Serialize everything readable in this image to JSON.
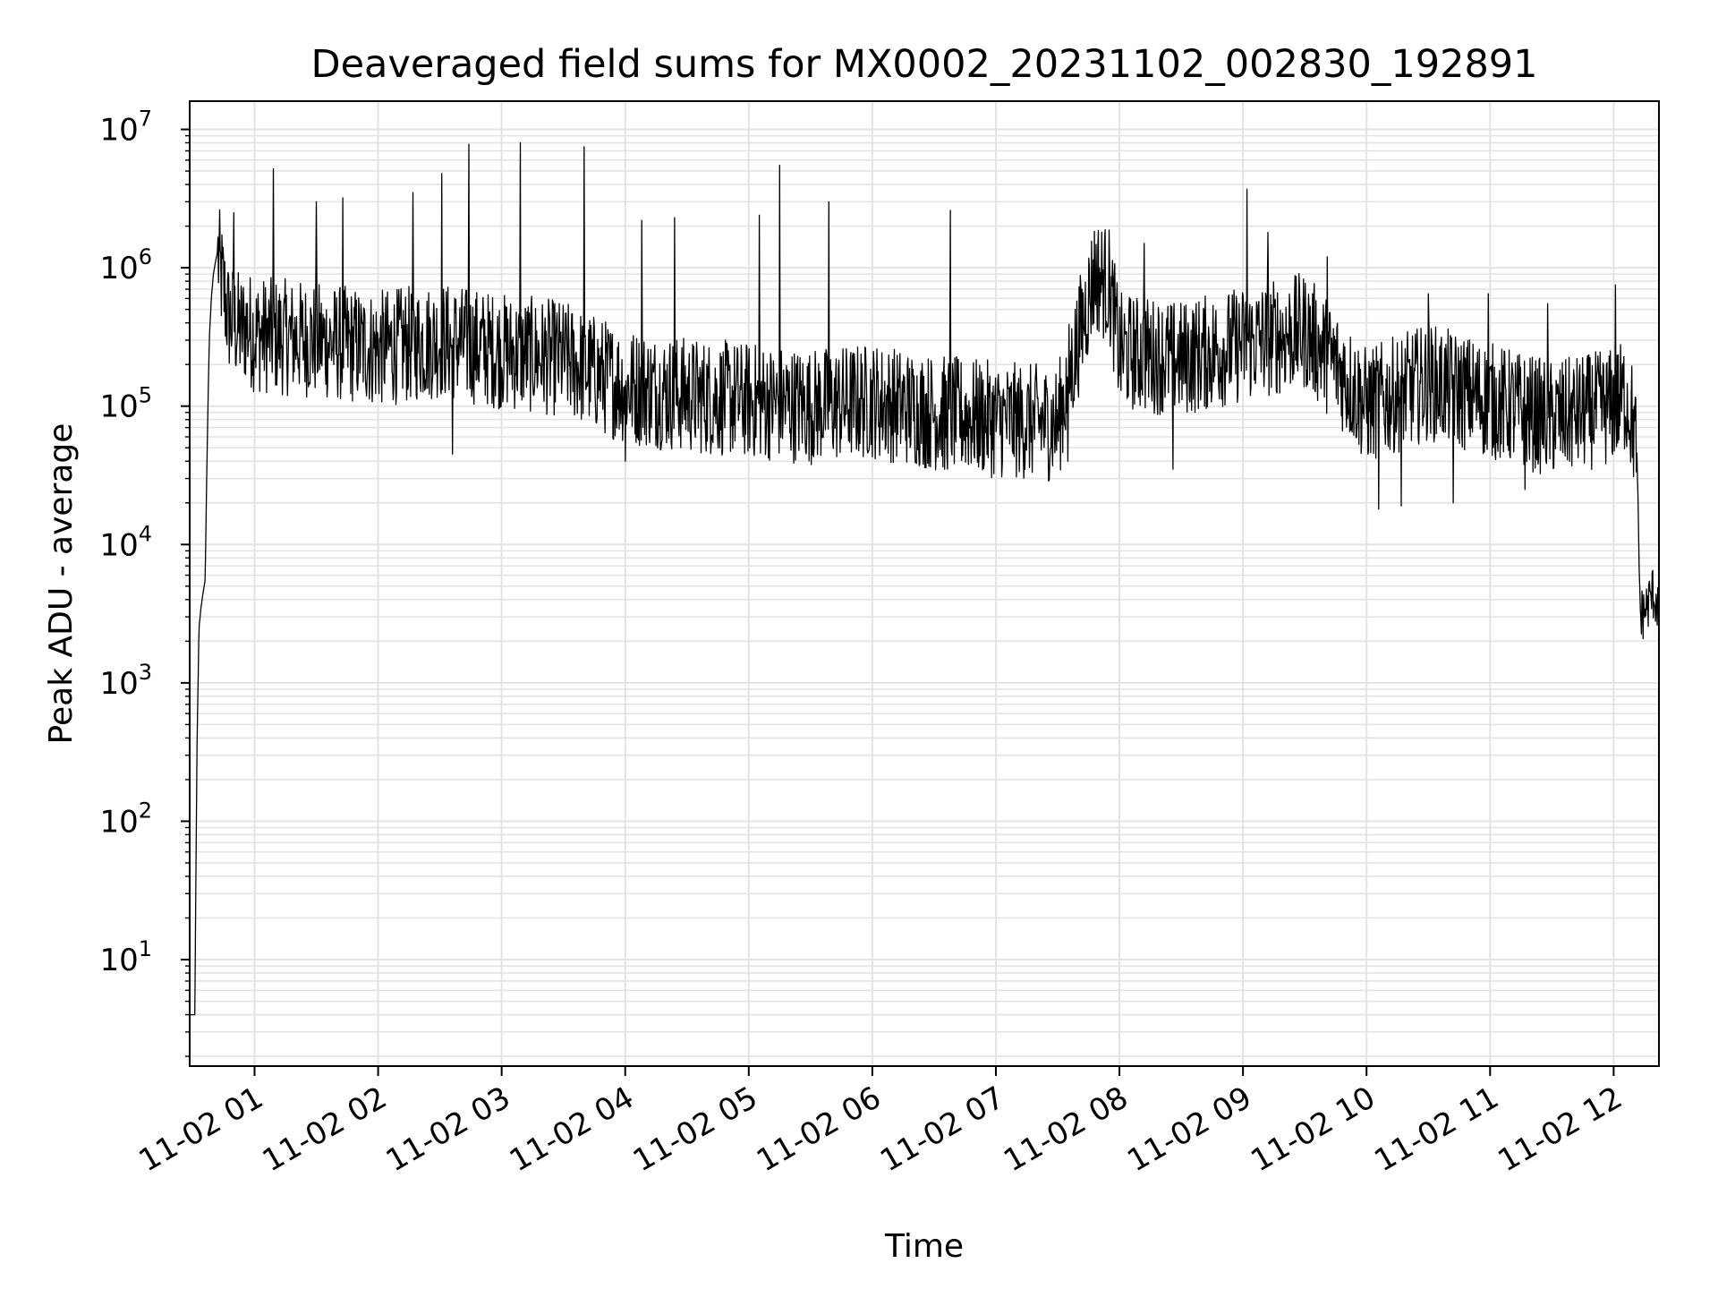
{
  "chart_data": {
    "type": "line",
    "title": "Deaveraged field sums for MX0002_20231102_002830_192891",
    "xlabel": "Time",
    "ylabel": "Peak ADU - average",
    "yscale": "log",
    "ylim": [
      1.7,
      16000000
    ],
    "xlim": [
      "2023-11-02 00:28:30",
      "2023-11-02 12:22:00"
    ],
    "x_ticks": [
      "11-02 01",
      "11-02 02",
      "11-02 03",
      "11-02 04",
      "11-02 05",
      "11-02 06",
      "11-02 07",
      "11-02 08",
      "11-02 09",
      "11-02 10",
      "11-02 11",
      "11-02 12"
    ],
    "y_ticks": [
      {
        "base": "10",
        "exp": "1"
      },
      {
        "base": "10",
        "exp": "2"
      },
      {
        "base": "10",
        "exp": "3"
      },
      {
        "base": "10",
        "exp": "4"
      },
      {
        "base": "10",
        "exp": "5"
      },
      {
        "base": "10",
        "exp": "6"
      },
      {
        "base": "10",
        "exp": "7"
      }
    ],
    "grid": true,
    "line_color": "#000000",
    "series": [
      {
        "x": [
          "2023-11-02 00:28:30",
          "2023-11-02 00:29:00",
          "2023-11-02 00:30:00",
          "2023-11-02 00:31:00",
          "2023-11-02 00:32:00",
          "2023-11-02 00:33:00",
          "2023-11-02 00:34:00",
          "2023-11-02 00:35:00",
          "2023-11-02 00:36:00",
          "2023-11-02 00:37:00",
          "2023-11-02 00:38:00",
          "2023-11-02 00:39:00",
          "2023-11-02 00:40:00",
          "2023-11-02 00:41:00",
          "2023-11-02 00:42:00",
          "2023-11-02 00:43:00",
          "2023-11-02 00:45:00",
          "2023-11-02 00:47:00",
          "2023-11-02 00:50:00",
          "2023-11-02 00:53:00",
          "2023-11-02 00:56:00",
          "2023-11-02 01:00:00",
          "2023-11-02 01:30:00",
          "2023-11-02 02:00:00",
          "2023-11-02 02:30:00",
          "2023-11-02 03:00:00",
          "2023-11-02 03:30:00",
          "2023-11-02 04:00:00",
          "2023-11-02 04:30:00",
          "2023-11-02 05:00:00",
          "2023-11-02 05:30:00",
          "2023-11-02 06:00:00",
          "2023-11-02 06:30:00",
          "2023-11-02 07:00:00",
          "2023-11-02 07:30:00",
          "2023-11-02 07:40:00",
          "2023-11-02 07:48:00",
          "2023-11-02 07:55:00",
          "2023-11-02 08:00:00",
          "2023-11-02 08:30:00",
          "2023-11-02 09:00:00",
          "2023-11-02 09:30:00",
          "2023-11-02 09:45:00",
          "2023-11-02 10:00:00",
          "2023-11-02 10:30:00",
          "2023-11-02 11:00:00",
          "2023-11-02 11:30:00",
          "2023-11-02 12:00:00",
          "2023-11-02 12:06:00",
          "2023-11-02 12:09:00",
          "2023-11-02 12:11:00",
          "2023-11-02 12:13:00",
          "2023-11-02 12:16:00",
          "2023-11-02 12:19:00",
          "2023-11-02 12:22:00"
        ],
        "y": [
          4,
          4,
          4,
          4,
          300,
          2500,
          3500,
          4500,
          5500,
          50000,
          300000,
          600000,
          900000,
          1100000,
          1300000,
          1000000,
          700000,
          450000,
          400000,
          350000,
          380000,
          330000,
          300000,
          260000,
          300000,
          250000,
          220000,
          140000,
          120000,
          110000,
          100000,
          110000,
          90000,
          80000,
          75000,
          300000,
          900000,
          750000,
          250000,
          220000,
          280000,
          350000,
          200000,
          100000,
          150000,
          110000,
          80000,
          100000,
          120000,
          80000,
          50000,
          3000,
          3500,
          4500,
          3500
        ]
      }
    ],
    "spikes": [
      {
        "x": "2023-11-02 00:50:00",
        "y": 2500000
      },
      {
        "x": "2023-11-02 01:09:00",
        "y": 5200000
      },
      {
        "x": "2023-11-02 01:30:00",
        "y": 3000000
      },
      {
        "x": "2023-11-02 01:43:00",
        "y": 3200000
      },
      {
        "x": "2023-11-02 02:17:00",
        "y": 3500000
      },
      {
        "x": "2023-11-02 02:31:00",
        "y": 4800000
      },
      {
        "x": "2023-11-02 02:44:00",
        "y": 7800000
      },
      {
        "x": "2023-11-02 03:09:00",
        "y": 8000000
      },
      {
        "x": "2023-11-02 03:40:00",
        "y": 7500000
      },
      {
        "x": "2023-11-02 04:08:00",
        "y": 2200000
      },
      {
        "x": "2023-11-02 04:24:00",
        "y": 2300000
      },
      {
        "x": "2023-11-02 05:05:00",
        "y": 2400000
      },
      {
        "x": "2023-11-02 05:15:00",
        "y": 5500000
      },
      {
        "x": "2023-11-02 05:39:00",
        "y": 3000000
      },
      {
        "x": "2023-11-02 06:38:00",
        "y": 2600000
      },
      {
        "x": "2023-11-02 08:12:00",
        "y": 1500000
      },
      {
        "x": "2023-11-02 09:02:00",
        "y": 3700000
      },
      {
        "x": "2023-11-02 09:12:00",
        "y": 1800000
      },
      {
        "x": "2023-11-02 09:41:00",
        "y": 1200000
      },
      {
        "x": "2023-11-02 10:30:00",
        "y": 650000
      },
      {
        "x": "2023-11-02 10:59:00",
        "y": 650000
      },
      {
        "x": "2023-11-02 11:28:00",
        "y": 550000
      },
      {
        "x": "2023-11-02 12:01:00",
        "y": 750000
      }
    ],
    "dips": [
      {
        "x": "2023-11-02 02:36:00",
        "y": 45000
      },
      {
        "x": "2023-11-02 04:00:00",
        "y": 40000
      },
      {
        "x": "2023-11-02 06:35:00",
        "y": 35000
      },
      {
        "x": "2023-11-02 07:35:00",
        "y": 40000
      },
      {
        "x": "2023-11-02 08:26:00",
        "y": 35000
      },
      {
        "x": "2023-11-02 10:06:00",
        "y": 18000
      },
      {
        "x": "2023-11-02 10:17:00",
        "y": 19000
      },
      {
        "x": "2023-11-02 10:42:00",
        "y": 20000
      },
      {
        "x": "2023-11-02 11:17:00",
        "y": 25000
      }
    ]
  }
}
